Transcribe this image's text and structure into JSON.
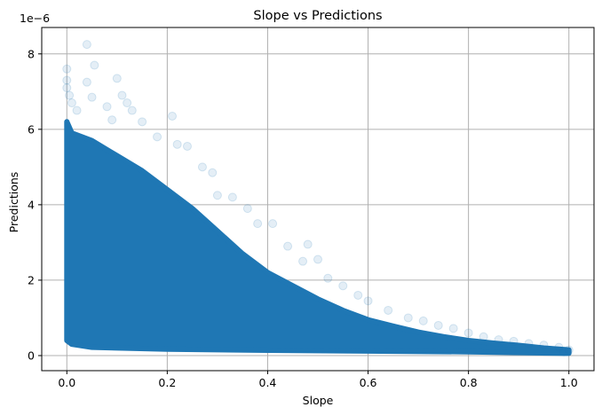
{
  "chart_data": {
    "type": "scatter",
    "title": "Slope vs Predictions",
    "xlabel": "Slope",
    "ylabel": "Predictions",
    "y_offset_label": "1e−6",
    "xlim": [
      -0.05,
      1.05
    ],
    "ylim": [
      -4e-07,
      8.7e-06
    ],
    "x_ticks": [
      0.0,
      0.2,
      0.4,
      0.6,
      0.8,
      1.0
    ],
    "x_tick_labels": [
      "0.0",
      "0.2",
      "0.4",
      "0.6",
      "0.8",
      "1.0"
    ],
    "y_ticks": [
      0,
      2e-06,
      4e-06,
      6e-06,
      8e-06
    ],
    "y_tick_labels": [
      "0",
      "2",
      "4",
      "6",
      "8"
    ],
    "grid": true,
    "marker_color": "#1f77b4",
    "marker_alpha": 0.12,
    "series": [
      {
        "points": [
          [
            0.0,
            7.6e-06
          ],
          [
            0.0,
            7.3e-06
          ],
          [
            0.0,
            7.1e-06
          ],
          [
            0.005,
            6.9e-06
          ],
          [
            0.01,
            6.7e-06
          ],
          [
            0.02,
            6.5e-06
          ],
          [
            0.04,
            8.25e-06
          ],
          [
            0.055,
            7.7e-06
          ],
          [
            0.04,
            7.25e-06
          ],
          [
            0.05,
            6.85e-06
          ],
          [
            0.08,
            6.6e-06
          ],
          [
            0.1,
            7.35e-06
          ],
          [
            0.11,
            6.9e-06
          ],
          [
            0.12,
            6.7e-06
          ],
          [
            0.13,
            6.5e-06
          ],
          [
            0.09,
            6.25e-06
          ],
          [
            0.15,
            6.2e-06
          ],
          [
            0.21,
            6.35e-06
          ],
          [
            0.18,
            5.8e-06
          ],
          [
            0.22,
            5.6e-06
          ],
          [
            0.24,
            5.55e-06
          ],
          [
            0.27,
            5e-06
          ],
          [
            0.29,
            4.85e-06
          ],
          [
            0.3,
            4.25e-06
          ],
          [
            0.33,
            4.2e-06
          ],
          [
            0.36,
            3.9e-06
          ],
          [
            0.38,
            3.5e-06
          ],
          [
            0.41,
            3.5e-06
          ],
          [
            0.44,
            2.9e-06
          ],
          [
            0.48,
            2.95e-06
          ],
          [
            0.47,
            2.5e-06
          ],
          [
            0.5,
            2.55e-06
          ],
          [
            0.52,
            2.05e-06
          ],
          [
            0.55,
            1.85e-06
          ],
          [
            0.58,
            1.6e-06
          ],
          [
            0.6,
            1.45e-06
          ],
          [
            0.64,
            1.2e-06
          ],
          [
            0.68,
            1e-06
          ],
          [
            0.71,
            9.2e-07
          ],
          [
            0.74,
            8e-07
          ],
          [
            0.77,
            7.2e-07
          ],
          [
            0.8,
            6e-07
          ],
          [
            0.83,
            5e-07
          ],
          [
            0.86,
            4.2e-07
          ],
          [
            0.89,
            3.8e-07
          ],
          [
            0.92,
            3.2e-07
          ],
          [
            0.95,
            2.8e-07
          ],
          [
            0.98,
            2.2e-07
          ],
          [
            1.0,
            1.5e-07
          ],
          [
            0.99,
            1e-07
          ]
        ]
      }
    ]
  }
}
